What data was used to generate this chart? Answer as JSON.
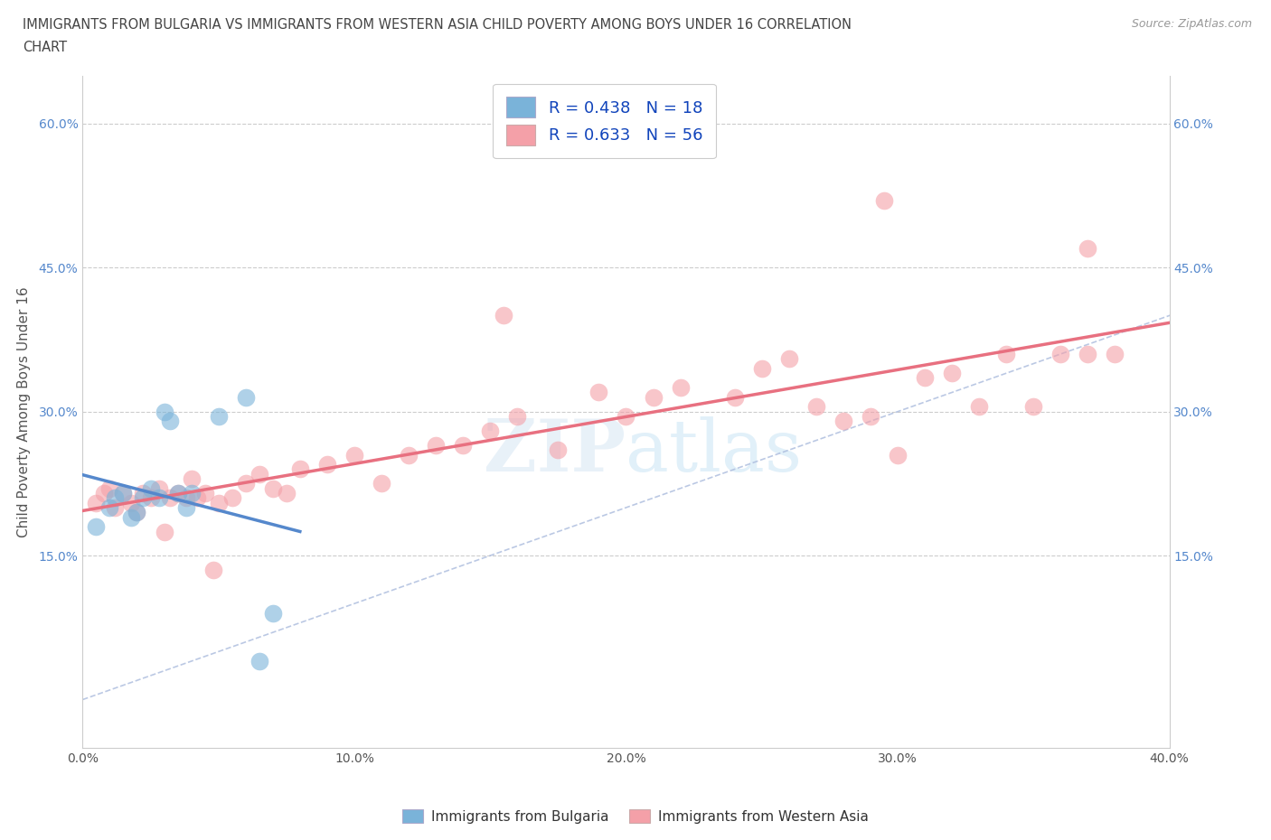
{
  "title_line1": "IMMIGRANTS FROM BULGARIA VS IMMIGRANTS FROM WESTERN ASIA CHILD POVERTY AMONG BOYS UNDER 16 CORRELATION",
  "title_line2": "CHART",
  "source": "Source: ZipAtlas.com",
  "ylabel": "Child Poverty Among Boys Under 16",
  "xlim": [
    0.0,
    0.4
  ],
  "ylim": [
    -0.05,
    0.65
  ],
  "xtick_labels": [
    "0.0%",
    "",
    "10.0%",
    "",
    "20.0%",
    "",
    "30.0%",
    "",
    "40.0%"
  ],
  "xtick_vals": [
    0.0,
    0.05,
    0.1,
    0.15,
    0.2,
    0.25,
    0.3,
    0.35,
    0.4
  ],
  "ytick_labels": [
    "15.0%",
    "30.0%",
    "45.0%",
    "60.0%"
  ],
  "ytick_vals": [
    0.15,
    0.3,
    0.45,
    0.6
  ],
  "watermark": "ZIPAtlas",
  "bulgaria_color": "#7ab3d9",
  "western_asia_color": "#f4a0a8",
  "bulgaria_line_color": "#5588cc",
  "western_asia_line_color": "#e87080",
  "diag_color": "#aabbdd",
  "bulgaria_R": 0.438,
  "bulgaria_N": 18,
  "western_asia_R": 0.633,
  "western_asia_N": 56,
  "bulgaria_scatter_x": [
    0.005,
    0.01,
    0.012,
    0.015,
    0.018,
    0.02,
    0.022,
    0.025,
    0.028,
    0.03,
    0.032,
    0.035,
    0.038,
    0.04,
    0.05,
    0.06,
    0.065,
    0.07
  ],
  "bulgaria_scatter_y": [
    0.18,
    0.2,
    0.21,
    0.215,
    0.19,
    0.195,
    0.21,
    0.22,
    0.21,
    0.3,
    0.29,
    0.215,
    0.2,
    0.215,
    0.295,
    0.315,
    0.04,
    0.09
  ],
  "western_asia_scatter_x": [
    0.005,
    0.008,
    0.01,
    0.012,
    0.015,
    0.018,
    0.02,
    0.022,
    0.025,
    0.028,
    0.03,
    0.032,
    0.035,
    0.038,
    0.04,
    0.042,
    0.045,
    0.048,
    0.05,
    0.055,
    0.06,
    0.065,
    0.07,
    0.075,
    0.08,
    0.09,
    0.1,
    0.11,
    0.12,
    0.13,
    0.14,
    0.15,
    0.16,
    0.175,
    0.19,
    0.2,
    0.21,
    0.22,
    0.24,
    0.25,
    0.26,
    0.27,
    0.28,
    0.29,
    0.3,
    0.31,
    0.32,
    0.33,
    0.34,
    0.35,
    0.36,
    0.37,
    0.37,
    0.38,
    0.295,
    0.155
  ],
  "western_asia_scatter_y": [
    0.205,
    0.215,
    0.22,
    0.2,
    0.215,
    0.205,
    0.195,
    0.215,
    0.21,
    0.22,
    0.175,
    0.21,
    0.215,
    0.21,
    0.23,
    0.21,
    0.215,
    0.135,
    0.205,
    0.21,
    0.225,
    0.235,
    0.22,
    0.215,
    0.24,
    0.245,
    0.255,
    0.225,
    0.255,
    0.265,
    0.265,
    0.28,
    0.295,
    0.26,
    0.32,
    0.295,
    0.315,
    0.325,
    0.315,
    0.345,
    0.355,
    0.305,
    0.29,
    0.295,
    0.255,
    0.335,
    0.34,
    0.305,
    0.36,
    0.305,
    0.36,
    0.47,
    0.36,
    0.36,
    0.52,
    0.4
  ]
}
